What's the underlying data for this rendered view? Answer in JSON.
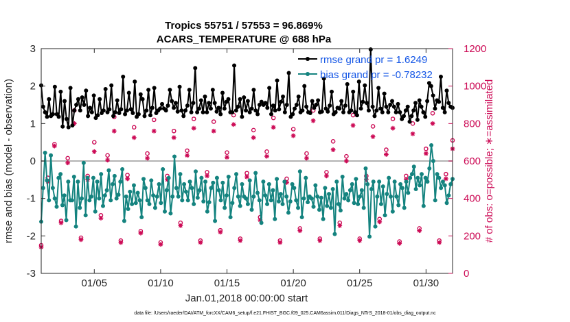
{
  "chart_data": {
    "type": "line",
    "title": "Tropics 55751 / 57553 = 96.869%",
    "subtitle": "ACARS_TEMPERATURE @ 688 hPa",
    "xlabel": "Jan.01,2018 00:00:00 start",
    "ylabel": "rmse and bias (model - observation)",
    "y2label": "# of obs: o=possible; ∗=assimilated",
    "xlim": [
      1,
      32
    ],
    "ylim": [
      -3,
      3
    ],
    "y2lim": [
      0,
      1200
    ],
    "x_ticks": [
      5,
      10,
      15,
      20,
      25,
      30
    ],
    "x_tick_labels": [
      "01/05",
      "01/10",
      "01/15",
      "01/20",
      "01/25",
      "01/30"
    ],
    "y_ticks": [
      -3,
      -2,
      -1,
      0,
      1,
      2,
      3
    ],
    "y_tick_labels": [
      "-3",
      "-2",
      "-1",
      "0",
      "1",
      "2",
      "3"
    ],
    "y2_ticks": [
      0,
      200,
      400,
      600,
      800,
      1000,
      1200
    ],
    "y2_tick_labels": [
      "0",
      "200",
      "400",
      "600",
      "800",
      "1000",
      "1200"
    ],
    "footnote": "data file: /Users/raeder/DAI/ATM_forcXX/CAM6_setup/f.e21.FHIST_BGC.f09_025.CAM6assim.011/Diags_NTrS_2018-01/obs_diag_output.nc",
    "colors": {
      "rmse": "#000000",
      "bias": "#14837f",
      "obs": "#cc0a55",
      "zero_line": "#b3b3b3",
      "legend_text": "#1456e6"
    },
    "series": [
      {
        "name": "rmse grand pr = 1.6249",
        "axis": "left",
        "values": [
          2.02,
          1.45,
          1.3,
          1.18,
          1.65,
          1.2,
          1.25,
          1.98,
          1.25,
          1.18,
          1.85,
          0.92,
          1.6,
          1.12,
          0.9,
          1.95,
          0.95,
          1.35,
          1.5,
          1.65,
          1.35,
          1.7,
          1.5,
          1.88,
          1.2,
          1.42,
          1.3,
          1.75,
          1.15,
          1.22,
          1.65,
          1.28,
          1.35,
          1.92,
          1.3,
          1.38,
          2.02,
          1.2,
          1.3,
          1.62,
          1.28,
          1.38,
          2.25,
          1.25,
          1.35,
          1.82,
          1.38,
          1.28,
          2.12,
          1.18,
          1.25,
          1.78,
          1.65,
          1.2,
          1.35,
          1.9,
          1.22,
          1.42,
          1.95,
          1.28,
          1.35,
          1.4,
          1.52,
          1.4,
          1.35,
          1.48,
          1.9,
          1.6,
          1.42,
          1.55,
          1.32,
          1.98,
          1.35,
          1.2,
          1.35,
          1.48,
          1.9,
          1.3,
          1.55,
          2.48,
          1.3,
          1.4,
          1.62,
          1.3,
          1.72,
          1.3,
          1.55,
          1.4,
          1.9,
          1.55,
          1.32,
          1.42,
          1.25,
          1.82,
          1.4,
          1.58,
          1.65,
          1.3,
          1.3,
          2.55,
          1.35,
          1.45,
          1.65,
          1.18,
          1.7,
          1.35,
          1.6,
          1.3,
          1.4,
          1.9,
          1.35,
          1.25,
          1.5,
          1.58,
          1.5,
          1.55,
          1.42,
          1.95,
          1.25,
          1.48,
          1.35,
          2.15,
          1.38,
          1.58,
          1.72,
          1.3,
          1.5,
          2.35,
          1.18,
          1.25,
          1.4,
          1.5,
          1.72,
          1.3,
          1.35,
          2.0,
          1.45,
          1.3,
          1.28,
          1.6,
          1.42,
          1.5,
          1.62,
          1.3,
          1.32,
          2.2,
          1.4,
          1.32,
          1.48,
          1.85,
          1.25,
          1.3,
          1.42,
          1.4,
          1.6,
          1.3,
          1.48,
          2.05,
          1.3,
          1.35,
          1.85,
          1.3,
          1.22,
          2.12,
          1.4,
          1.58,
          2.02,
          1.55,
          1.35,
          2.98,
          1.45,
          1.2,
          1.35,
          1.95,
          1.4,
          1.3,
          1.8,
          1.45,
          1.3,
          1.5,
          1.6,
          1.45,
          1.3,
          1.52,
          1.3,
          1.12,
          1.2,
          1.35,
          1.45,
          1.05,
          1.2,
          1.35,
          1.55,
          1.1,
          1.62,
          1.45,
          1.3,
          1.18,
          1.6,
          2.08,
          2.0,
          1.75,
          1.4,
          1.62,
          1.58,
          2.25,
          1.42,
          1.3,
          1.88,
          1.55,
          1.45,
          1.42
        ]
      },
      {
        "name": "bias grand pr = -0.78232",
        "axis": "left",
        "values": [
          -1.62,
          -0.72,
          0.22,
          -0.52,
          -1.05,
          0.15,
          -0.72,
          -1.0,
          -1.22,
          -0.45,
          -0.35,
          -1.18,
          -0.92,
          -1.58,
          -0.55,
          -1.05,
          -1.05,
          -0.42,
          -1.75,
          -0.55,
          -1.25,
          -1.0,
          -0.05,
          -1.45,
          -0.45,
          -1.05,
          -0.95,
          -0.45,
          -1.35,
          -0.55,
          -1.0,
          -0.35,
          -1.2,
          -0.92,
          -0.78,
          -0.25,
          -1.05,
          -0.62,
          -0.4,
          -1.0,
          -0.9,
          -0.55,
          -0.22,
          -1.6,
          -0.95,
          -1.28,
          -0.82,
          -1.15,
          -0.65,
          -1.12,
          -0.85,
          -1.05,
          -1.5,
          -0.48,
          -0.72,
          -1.05,
          -1.15,
          -0.52,
          -0.92,
          -1.25,
          -0.95,
          -0.62,
          -1.12,
          -0.22,
          -1.35,
          -0.78,
          -0.45,
          -1.4,
          -0.95,
          0.12,
          -0.72,
          -0.95,
          -0.35,
          -1.05,
          -0.62,
          -0.82,
          -1.05,
          -0.55,
          -0.72,
          -1.15,
          -0.28,
          -0.98,
          -0.78,
          -0.45,
          -1.08,
          -0.55,
          -1.35,
          -1.1,
          -0.72,
          -0.58,
          -1.6,
          -0.45,
          -0.78,
          -1.05,
          -0.58,
          -1.25,
          -0.92,
          -0.42,
          -1.5,
          -1.12,
          -0.72,
          -0.35,
          -0.95,
          -1.2,
          -0.62,
          -0.95,
          -1.0,
          -1.15,
          -0.52,
          -1.3,
          -0.95,
          -0.32,
          -0.85,
          -1.05,
          -1.65,
          -0.55,
          -0.92,
          -1.15,
          -0.62,
          -1.05,
          -0.78,
          -1.55,
          -0.48,
          -1.08,
          -0.88,
          -1.15,
          -0.55,
          -0.95,
          -1.38,
          -1.08,
          -0.62,
          -0.72,
          -1.05,
          -1.25,
          -0.28,
          -1.5,
          -1.0,
          -0.45,
          -1.1,
          -0.95,
          -1.0,
          -1.22,
          -0.65,
          -0.95,
          -1.3,
          -0.98,
          -1.55,
          -0.72,
          -1.2,
          -0.88,
          -1.25,
          -0.75,
          -1.95,
          -0.55,
          -1.15,
          -1.32,
          -0.42,
          -1.0,
          -0.88,
          -1.05,
          -0.78,
          -0.62,
          -1.12,
          -0.48,
          -1.15,
          -0.95,
          -0.78,
          -1.25,
          -0.2,
          -0.62,
          -2.02,
          -0.75,
          -0.55,
          -1.75,
          -0.95,
          -0.55,
          -1.15,
          -0.68,
          -1.45,
          -0.88,
          -0.45,
          -0.95,
          -1.35,
          -0.55,
          -0.95,
          -1.18,
          -0.62,
          -0.72,
          -1.25,
          -0.55,
          -0.85,
          -0.45,
          -0.35,
          -0.15,
          -0.75,
          -0.45,
          -0.65,
          -0.35,
          -1.2,
          -0.45,
          -0.55,
          -0.2,
          0.42,
          0.0,
          -1.05,
          -0.35,
          -0.45,
          -0.72,
          -0.55,
          -0.65,
          -1.12,
          -0.92,
          -0.62,
          -0.48
        ]
      },
      {
        "name": "possible",
        "axis": "right",
        "marker": "o",
        "x": [
          1.0,
          1.5,
          2.0,
          2.5,
          3.0,
          3.5,
          4.0,
          4.5,
          5.0,
          5.5,
          6.0,
          6.5,
          7.0,
          7.5,
          8.0,
          8.5,
          9.0,
          9.5,
          10.0,
          10.5,
          11.0,
          11.5,
          12.0,
          12.5,
          13.0,
          13.5,
          14.0,
          14.5,
          15.0,
          15.5,
          16.0,
          16.5,
          17.0,
          17.5,
          18.0,
          18.5,
          19.0,
          19.5,
          20.0,
          20.5,
          21.0,
          21.5,
          22.0,
          22.5,
          23.0,
          23.5,
          24.0,
          24.5,
          25.0,
          25.5,
          26.0,
          26.5,
          27.0,
          27.5,
          28.0,
          28.5,
          29.0,
          29.5,
          30.0,
          30.5,
          31.0,
          31.5,
          32.0
        ],
        "values": [
          150,
          510,
          690,
          280,
          615,
          870,
          190,
          520,
          700,
          310,
          630,
          835,
          175,
          525,
          780,
          225,
          640,
          820,
          165,
          520,
          760,
          270,
          655,
          825,
          175,
          540,
          810,
          230,
          645,
          845,
          185,
          535,
          765,
          300,
          650,
          830,
          175,
          505,
          770,
          240,
          640,
          870,
          185,
          540,
          705,
          270,
          625,
          845,
          185,
          520,
          785,
          290,
          660,
          825,
          170,
          520,
          800,
          240,
          665,
          855,
          175,
          530,
          710
        ]
      },
      {
        "name": "assimilated",
        "axis": "right",
        "marker": "*",
        "x": [
          1.0,
          1.5,
          2.0,
          2.5,
          3.0,
          3.5,
          4.0,
          4.5,
          5.0,
          5.5,
          6.0,
          6.5,
          7.0,
          7.5,
          8.0,
          8.5,
          9.0,
          9.5,
          10.0,
          10.5,
          11.0,
          11.5,
          12.0,
          12.5,
          13.0,
          13.5,
          14.0,
          14.5,
          15.0,
          15.5,
          16.0,
          16.5,
          17.0,
          17.5,
          18.0,
          18.5,
          19.0,
          19.5,
          20.0,
          20.5,
          21.0,
          21.5,
          22.0,
          22.5,
          23.0,
          23.5,
          24.0,
          24.5,
          25.0,
          25.5,
          26.0,
          26.5,
          27.0,
          27.5,
          28.0,
          28.5,
          29.0,
          29.5,
          30.0,
          30.5,
          31.0,
          31.5,
          32.0
        ],
        "values": [
          140,
          490,
          680,
          270,
          590,
          800,
          180,
          500,
          650,
          295,
          605,
          760,
          165,
          505,
          725,
          215,
          615,
          760,
          155,
          500,
          725,
          255,
          630,
          775,
          165,
          520,
          760,
          220,
          620,
          795,
          175,
          515,
          725,
          285,
          625,
          780,
          165,
          485,
          735,
          228,
          615,
          815,
          175,
          520,
          660,
          255,
          600,
          790,
          175,
          500,
          730,
          275,
          635,
          775,
          160,
          500,
          745,
          228,
          640,
          800,
          165,
          505,
          665
        ]
      }
    ]
  }
}
